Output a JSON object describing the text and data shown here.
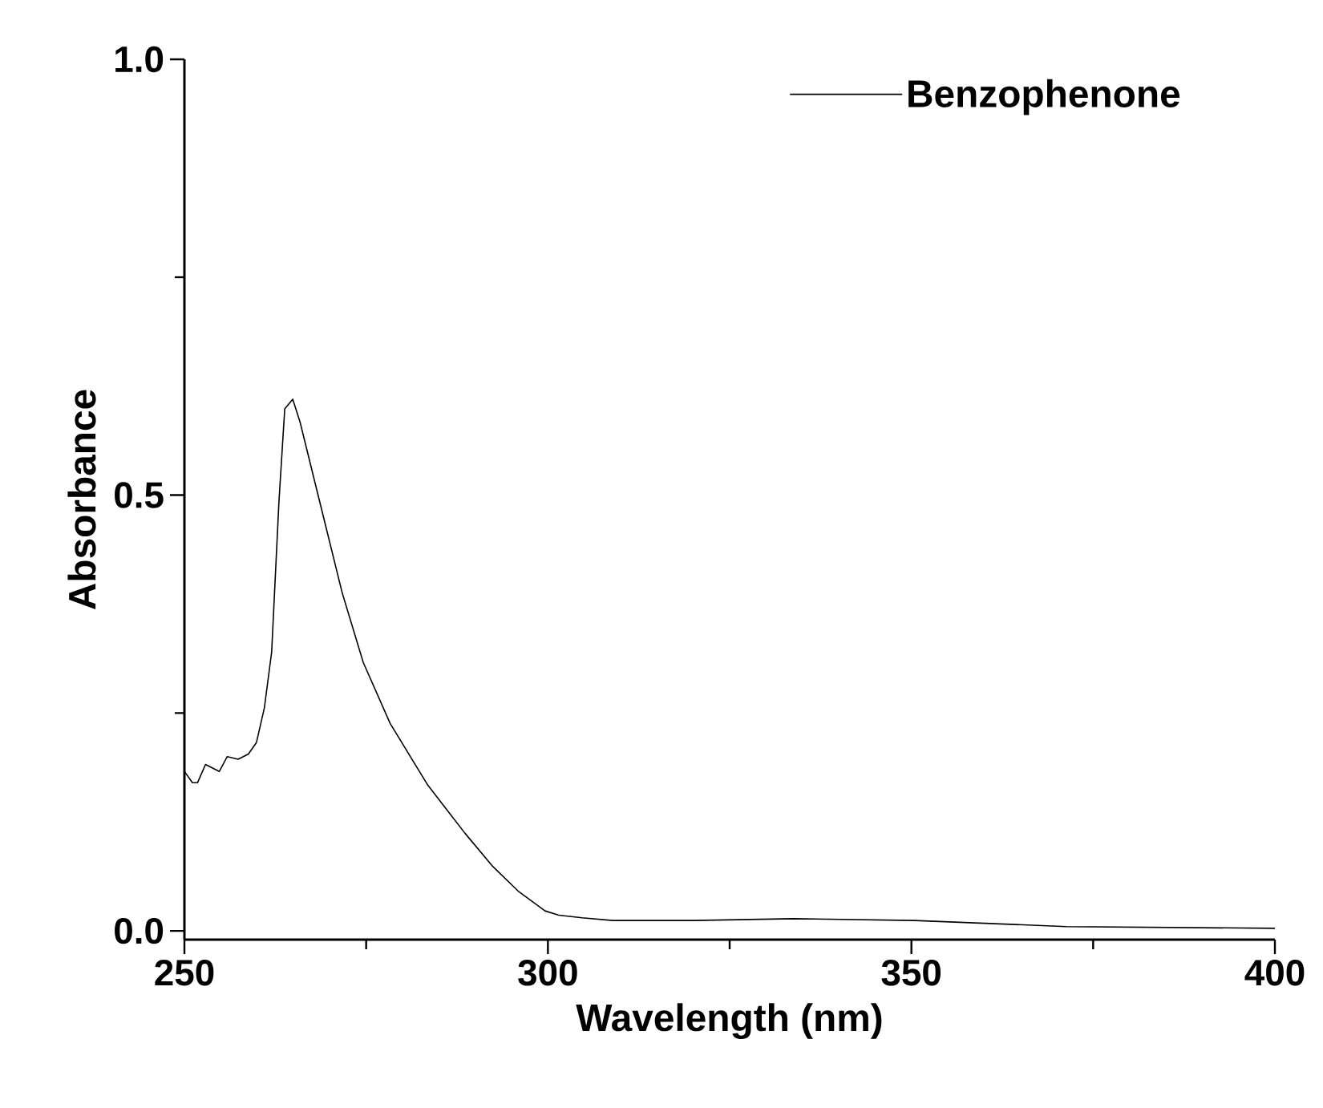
{
  "chart_data": {
    "type": "line",
    "xlabel": "Wavelength (nm)",
    "ylabel": "Absorbance",
    "x": [
      250,
      251.1,
      251.8,
      252.9,
      254.8,
      255.9,
      257.4,
      258.8,
      259.9,
      261.0,
      262.0,
      263.0,
      263.8,
      264.9,
      265.9,
      268.8,
      271.7,
      274.6,
      278.3,
      283.5,
      288.6,
      292.3,
      296.0,
      299.6,
      301.5,
      304.7,
      308.9,
      320,
      333.8,
      350.4,
      371.3,
      400
    ],
    "series": [
      {
        "name": "Benzophenone",
        "color": "#000000",
        "values": [
          0.183,
          0.17,
          0.17,
          0.191,
          0.183,
          0.2,
          0.197,
          0.203,
          0.216,
          0.256,
          0.32,
          0.492,
          0.599,
          0.61,
          0.584,
          0.486,
          0.388,
          0.308,
          0.238,
          0.167,
          0.112,
          0.075,
          0.045,
          0.023,
          0.018,
          0.015,
          0.012,
          0.012,
          0.014,
          0.012,
          0.005,
          0.003
        ]
      }
    ],
    "xlim": [
      250,
      400
    ],
    "ylim": [
      -0.01,
      1.0
    ],
    "xticks": [
      250,
      {
        "value": 275,
        "label": null
      },
      300,
      {
        "value": 325,
        "label": null
      },
      350,
      {
        "value": 375,
        "label": null
      },
      400
    ],
    "yticks": [
      {
        "value": 0,
        "label": "0.0"
      },
      {
        "value": 0.25,
        "label": null
      },
      {
        "value": 0.5,
        "label": "0.5"
      },
      {
        "value": 0.75,
        "label": null
      },
      {
        "value": 1.0,
        "label": "1.0"
      }
    ],
    "legend": "top right",
    "grid": false,
    "marker": "none",
    "line_style": "solid"
  }
}
